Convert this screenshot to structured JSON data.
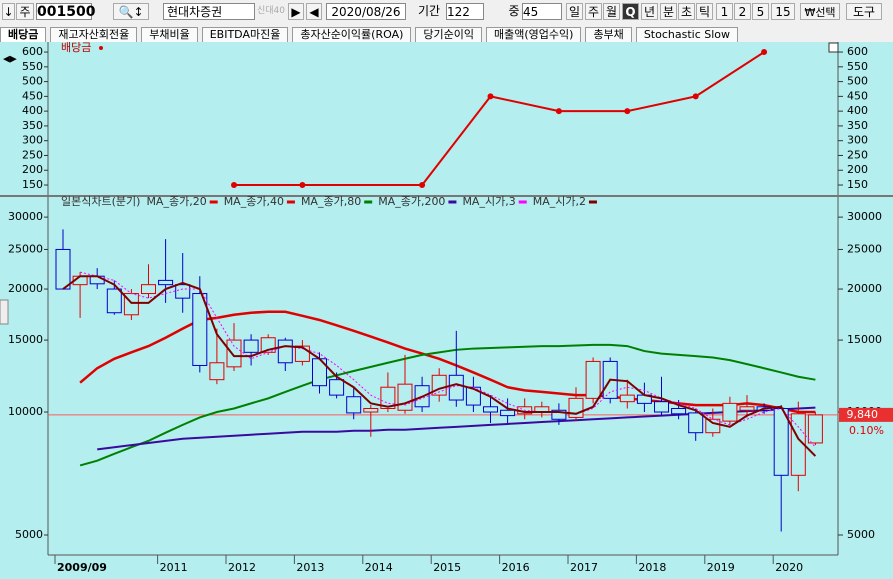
{
  "toolbar": {
    "market": "주",
    "code": "001500",
    "name": "현대차증권",
    "badge": "신대40",
    "date": "2020/08/26",
    "period_label": "기간",
    "period": "122",
    "count_label": "중",
    "count": "45",
    "intervals": [
      "일",
      "주",
      "월",
      "Q",
      "년",
      "분",
      "초",
      "틱",
      "1",
      "2",
      "5",
      "15"
    ],
    "select": "₩선택",
    "tools": "도구"
  },
  "tabs": [
    "배당금",
    "재고자산회전율",
    "부채비율",
    "EBITDA마진율",
    "총자산순이익률(ROA)",
    "당기순이익",
    "매출액(영업수익)",
    "총부채",
    "Stochastic Slow"
  ],
  "chart_data": [
    {
      "type": "line",
      "series": [
        {
          "name": "배당금",
          "color": "#e00000",
          "values": [
            null,
            null,
            null,
            null,
            null,
            null,
            null,
            null,
            null,
            null,
            150,
            null,
            null,
            null,
            150,
            null,
            null,
            null,
            null,
            null,
            null,
            150,
            null,
            null,
            null,
            450,
            null,
            null,
            null,
            400,
            null,
            null,
            null,
            400,
            null,
            null,
            null,
            450,
            null,
            null,
            null,
            600,
            null,
            null,
            null
          ]
        }
      ],
      "ylim": [
        123,
        634
      ],
      "yticks": [
        150,
        200,
        250,
        300,
        350,
        400,
        450,
        500,
        550,
        600
      ]
    },
    {
      "type": "candlestick",
      "title": "일본식차트(분기)",
      "categories": [
        "2009/09",
        null,
        null,
        null,
        null,
        null,
        "2011",
        null,
        null,
        null,
        "2012",
        null,
        null,
        null,
        "2013",
        null,
        null,
        null,
        "2014",
        null,
        null,
        null,
        "2015",
        null,
        null,
        null,
        "2016",
        null,
        null,
        null,
        "2017",
        null,
        null,
        null,
        "2018",
        null,
        null,
        null,
        "2019",
        null,
        null,
        null,
        "2020",
        null,
        null
      ],
      "open": [
        25000,
        20500,
        21500,
        20000,
        17300,
        19500,
        21000,
        20500,
        19500,
        12000,
        12900,
        15000,
        14000,
        15000,
        13300,
        13500,
        12000,
        10900,
        10000,
        10200,
        10100,
        11600,
        11000,
        12300,
        11500,
        10300,
        10100,
        9900,
        10000,
        10100,
        9700,
        10800,
        13300,
        10600,
        11000,
        10600,
        10200,
        9950,
        8900,
        9500,
        10100,
        10300,
        10200,
        7000,
        8400
      ],
      "high": [
        28000,
        22000,
        22500,
        21000,
        20000,
        23000,
        26500,
        24500,
        21500,
        16000,
        16500,
        15500,
        15500,
        15200,
        15000,
        14000,
        12500,
        11500,
        10400,
        12500,
        13800,
        12200,
        12800,
        15800,
        12200,
        11000,
        10800,
        10800,
        10600,
        10500,
        11500,
        13600,
        13600,
        12000,
        11800,
        12200,
        10700,
        10200,
        10200,
        10900,
        11000,
        10500,
        10400,
        10600,
        10000
      ],
      "low": [
        20000,
        17000,
        20000,
        17300,
        16800,
        19000,
        18500,
        17500,
        12500,
        11700,
        12600,
        13000,
        13800,
        12600,
        13000,
        11100,
        10800,
        9600,
        8700,
        10000,
        9900,
        10000,
        10600,
        10300,
        10000,
        9400,
        9400,
        9600,
        9700,
        9300,
        9500,
        10500,
        10500,
        10200,
        10000,
        9800,
        9600,
        8500,
        8700,
        9300,
        9700,
        9900,
        5100,
        6400,
        8300
      ],
      "close": [
        20000,
        21500,
        20600,
        17500,
        19500,
        20500,
        20500,
        19000,
        13000,
        13200,
        15000,
        14000,
        15200,
        13200,
        14500,
        11600,
        11000,
        9950,
        10200,
        11500,
        11700,
        10300,
        12300,
        10700,
        10400,
        10000,
        9800,
        10300,
        10300,
        9600,
        10800,
        13300,
        10800,
        11000,
        10500,
        10000,
        9900,
        8900,
        9600,
        10500,
        10300,
        10100,
        7000,
        9900,
        9840
      ],
      "up_color": "#e00000",
      "down_color": "#0000cc",
      "series": [
        {
          "name": "MA_종가,20",
          "color": "#e00000",
          "values": [
            null,
            11800,
            12800,
            13500,
            14000,
            14500,
            15200,
            16000,
            16800,
            17000,
            17300,
            17500,
            17600,
            17600,
            17200,
            16800,
            16300,
            15800,
            15300,
            14800,
            14300,
            13900,
            13500,
            13000,
            12500,
            12000,
            11500,
            11300,
            11200,
            11100,
            11000,
            11000,
            10900,
            10800,
            10700,
            10600,
            10500,
            10400,
            10400,
            10400,
            10500,
            10400,
            10200,
            10000,
            10000
          ]
        },
        {
          "name": "MA_종가,40",
          "color": "#e00000",
          "values": [
            null,
            null,
            null,
            null,
            null,
            null,
            null,
            null,
            null,
            null,
            null,
            null,
            null,
            null,
            null,
            null,
            null,
            null,
            null,
            null,
            null,
            null,
            null,
            null,
            null,
            null,
            null,
            null,
            null,
            null,
            null,
            null,
            null,
            null,
            null,
            null,
            null,
            null,
            null,
            null,
            null,
            null,
            null,
            null,
            null
          ]
        },
        {
          "name": "MA_종가,80",
          "color": "#008000",
          "values": [
            null,
            7400,
            7600,
            7900,
            8200,
            8500,
            8900,
            9300,
            9700,
            10000,
            10200,
            10500,
            10800,
            11200,
            11600,
            12000,
            12300,
            12600,
            12900,
            13200,
            13500,
            13800,
            14000,
            14200,
            14300,
            14350,
            14400,
            14450,
            14500,
            14500,
            14550,
            14600,
            14600,
            14500,
            14100,
            13900,
            13800,
            13700,
            13600,
            13400,
            13100,
            12800,
            12500,
            12200,
            12000
          ]
        },
        {
          "name": "MA_종가,200",
          "color": "#3a0aa0",
          "values": [
            null,
            null,
            8100,
            8200,
            8300,
            8400,
            8500,
            8600,
            8650,
            8700,
            8750,
            8800,
            8850,
            8900,
            8950,
            8950,
            8950,
            9000,
            9000,
            9050,
            9050,
            9100,
            9150,
            9200,
            9250,
            9300,
            9350,
            9400,
            9450,
            9500,
            9550,
            9600,
            9650,
            9700,
            9750,
            9800,
            9850,
            9900,
            9950,
            10000,
            10050,
            10100,
            10150,
            10200,
            10250
          ]
        },
        {
          "name": "MA_시가,3",
          "color": "#ff00ff",
          "values": [
            null,
            22000,
            21500,
            21000,
            19500,
            19000,
            19500,
            20000,
            20000,
            17000,
            14500,
            13500,
            14000,
            14500,
            14300,
            13900,
            13000,
            12000,
            11000,
            10500,
            10400,
            10800,
            11200,
            11600,
            11500,
            11000,
            10500,
            10100,
            10000,
            10000,
            9900,
            10200,
            11200,
            11500,
            11300,
            10800,
            10500,
            10200,
            9600,
            9300,
            9600,
            10000,
            10200,
            9200,
            8200
          ]
        },
        {
          "name": "MA_시가,2",
          "color": "#800000",
          "values": [
            20000,
            21500,
            21500,
            20500,
            18500,
            18500,
            20000,
            20700,
            20000,
            15500,
            13700,
            13700,
            14200,
            14500,
            14400,
            13500,
            12200,
            11500,
            10500,
            10300,
            10500,
            10900,
            11400,
            11700,
            11400,
            10900,
            10200,
            10000,
            10000,
            10000,
            9900,
            10300,
            12000,
            11900,
            11000,
            10800,
            10400,
            10100,
            9400,
            9200,
            9800,
            10200,
            10300,
            8600,
            7800
          ]
        }
      ],
      "ylim": [
        4467,
        33600
      ],
      "yticks": [
        5000,
        10000,
        15000,
        20000,
        25000,
        30000
      ],
      "log_scale": true,
      "current_price": 9840,
      "price_label": "9,840",
      "change_label": "0.10%"
    }
  ]
}
